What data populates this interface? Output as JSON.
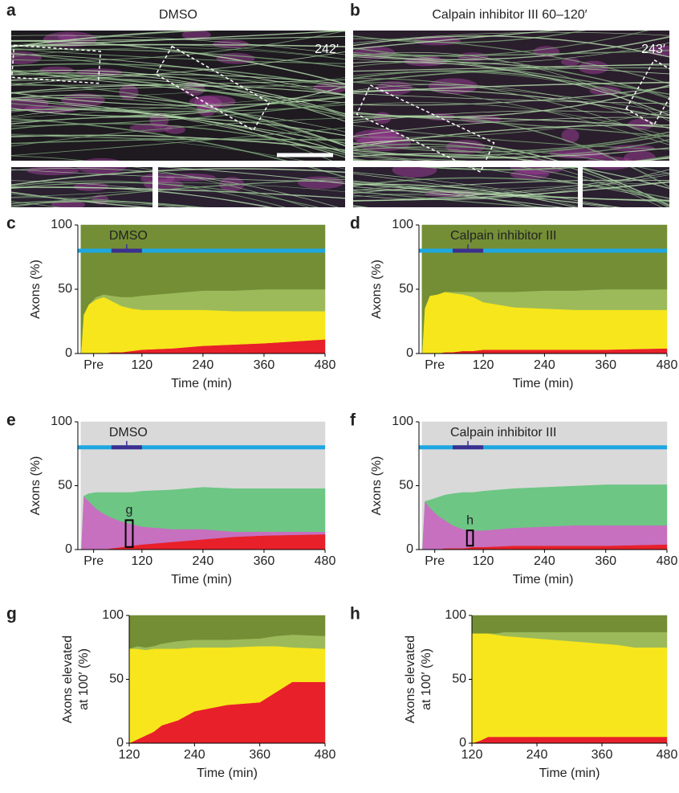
{
  "images": [
    {
      "panel": "a",
      "title": "DMSO",
      "time": "242′"
    },
    {
      "panel": "b",
      "title": "Calpain inhibitor III 60–120′",
      "time": "243′"
    }
  ],
  "chart_data": [
    {
      "type": "stacked-area",
      "panel": "c",
      "annotation": "DMSO",
      "treatment_window": [
        60,
        120
      ],
      "y_label": "Axons (%)",
      "x_label": "Time (min)",
      "x": [
        0,
        5,
        15,
        30,
        45,
        60,
        80,
        100,
        120,
        180,
        240,
        300,
        360,
        480
      ],
      "series": [
        {
          "color": "#e8202a",
          "values": [
            0,
            0,
            0,
            0,
            0,
            1,
            1,
            2,
            3,
            4,
            6,
            7,
            8,
            11
          ]
        },
        {
          "color": "#f6e61b",
          "values": [
            0,
            30,
            38,
            42,
            44,
            40,
            36,
            33,
            31,
            30,
            28,
            26,
            25,
            22
          ]
        },
        {
          "color": "#9cba5a",
          "values": [
            0,
            0,
            0,
            2,
            2,
            4,
            7,
            9,
            11,
            13,
            15,
            16,
            17,
            17
          ]
        },
        {
          "color": "#748e35",
          "values": [
            100,
            70,
            62,
            56,
            54,
            55,
            56,
            56,
            55,
            53,
            51,
            51,
            50,
            50
          ]
        }
      ],
      "xlim": [
        -6,
        480
      ],
      "xticks": [
        {
          "value": 25,
          "label": "Pre"
        },
        120,
        240,
        360,
        480
      ],
      "ylim": [
        0,
        100
      ],
      "yticks": [
        0,
        50,
        100
      ]
    },
    {
      "type": "stacked-area",
      "panel": "d",
      "annotation": "Calpain inhibitor III",
      "treatment_window": [
        60,
        120
      ],
      "y_label": "Axons (%)",
      "x_label": "Time (min)",
      "x": [
        0,
        5,
        15,
        30,
        45,
        60,
        80,
        100,
        120,
        180,
        240,
        300,
        360,
        480
      ],
      "series": [
        {
          "color": "#e8202a",
          "values": [
            0,
            0,
            0,
            0,
            1,
            1,
            2,
            2,
            3,
            3,
            3,
            3,
            3,
            4
          ]
        },
        {
          "color": "#f6e61b",
          "values": [
            0,
            35,
            45,
            46,
            47,
            46,
            44,
            42,
            37,
            33,
            32,
            31,
            31,
            30
          ]
        },
        {
          "color": "#9cba5a",
          "values": [
            0,
            0,
            0,
            0,
            0,
            1,
            2,
            4,
            8,
            12,
            14,
            15,
            16,
            16
          ]
        },
        {
          "color": "#748e35",
          "values": [
            100,
            65,
            55,
            54,
            52,
            52,
            52,
            52,
            52,
            52,
            51,
            51,
            50,
            50
          ]
        }
      ],
      "xlim": [
        -6,
        480
      ],
      "xticks": [
        {
          "value": 25,
          "label": "Pre"
        },
        120,
        240,
        360,
        480
      ],
      "ylim": [
        0,
        100
      ],
      "yticks": [
        0,
        50,
        100
      ]
    },
    {
      "type": "stacked-area",
      "panel": "e",
      "annotation": "DMSO",
      "treatment_window": [
        60,
        120
      ],
      "y_label": "Axons (%)",
      "x_label": "Time (min)",
      "highlight": {
        "label": "g",
        "x": [
          88,
          102
        ],
        "y": [
          2,
          23
        ]
      },
      "x": [
        0,
        5,
        15,
        30,
        45,
        60,
        80,
        100,
        120,
        180,
        240,
        300,
        360,
        480
      ],
      "series": [
        {
          "color": "#e8202a",
          "values": [
            0,
            0,
            0,
            0,
            0,
            1,
            2,
            3,
            4,
            6,
            8,
            10,
            11,
            12
          ]
        },
        {
          "color": "#c670bf",
          "values": [
            0,
            42,
            38,
            32,
            28,
            24,
            20,
            17,
            14,
            10,
            8,
            4,
            3,
            2
          ]
        },
        {
          "color": "#6dc684",
          "values": [
            0,
            0,
            6,
            13,
            17,
            20,
            23,
            25,
            28,
            31,
            33,
            34,
            34,
            34
          ]
        },
        {
          "color": "#d9d9d9",
          "values": [
            100,
            58,
            56,
            55,
            55,
            55,
            55,
            55,
            54,
            53,
            51,
            52,
            52,
            52
          ]
        }
      ],
      "xlim": [
        -6,
        480
      ],
      "xticks": [
        {
          "value": 25,
          "label": "Pre"
        },
        120,
        240,
        360,
        480
      ],
      "ylim": [
        0,
        100
      ],
      "yticks": [
        0,
        50,
        100
      ]
    },
    {
      "type": "stacked-area",
      "panel": "f",
      "annotation": "Calpain inhibitor III",
      "treatment_window": [
        60,
        120
      ],
      "y_label": "Axons (%)",
      "x_label": "Time (min)",
      "highlight": {
        "label": "h",
        "x": [
          88,
          100
        ],
        "y": [
          3,
          15
        ]
      },
      "x": [
        0,
        5,
        15,
        30,
        45,
        60,
        80,
        100,
        120,
        180,
        240,
        300,
        360,
        480
      ],
      "series": [
        {
          "color": "#e8202a",
          "values": [
            0,
            0,
            0,
            0,
            1,
            1,
            1,
            2,
            2,
            3,
            3,
            3,
            3,
            4
          ]
        },
        {
          "color": "#c670bf",
          "values": [
            0,
            38,
            33,
            27,
            22,
            18,
            15,
            13,
            13,
            14,
            15,
            16,
            16,
            15
          ]
        },
        {
          "color": "#6dc684",
          "values": [
            0,
            0,
            6,
            14,
            20,
            25,
            29,
            30,
            31,
            31,
            31,
            31,
            32,
            32
          ]
        },
        {
          "color": "#d9d9d9",
          "values": [
            100,
            62,
            61,
            59,
            57,
            56,
            55,
            55,
            54,
            52,
            51,
            50,
            49,
            49
          ]
        }
      ],
      "xlim": [
        -6,
        480
      ],
      "xticks": [
        {
          "value": 25,
          "label": "Pre"
        },
        120,
        240,
        360,
        480
      ],
      "ylim": [
        0,
        100
      ],
      "yticks": [
        0,
        50,
        100
      ]
    },
    {
      "type": "stacked-area",
      "panel": "g",
      "y_label": [
        "Axons elevated",
        "at 100′ (%)"
      ],
      "x_label": "Time (min)",
      "x": [
        120,
        135,
        150,
        165,
        180,
        210,
        240,
        300,
        360,
        390,
        420,
        480
      ],
      "series": [
        {
          "color": "#e8202a",
          "values": [
            0,
            3,
            6,
            9,
            14,
            18,
            25,
            30,
            32,
            40,
            48,
            48
          ]
        },
        {
          "color": "#f6e61b",
          "values": [
            74,
            71,
            67,
            65,
            60,
            56,
            50,
            45,
            44,
            36,
            27,
            26
          ]
        },
        {
          "color": "#9cba5a",
          "values": [
            0,
            2,
            2,
            2,
            4,
            6,
            6,
            6,
            6,
            8,
            10,
            10
          ]
        },
        {
          "color": "#748e35",
          "values": [
            26,
            24,
            25,
            24,
            22,
            20,
            19,
            19,
            18,
            16,
            15,
            16
          ]
        }
      ],
      "xlim": [
        120,
        480
      ],
      "xticks": [
        120,
        240,
        360,
        480
      ],
      "ylim": [
        0,
        100
      ],
      "yticks": [
        0,
        50,
        100
      ]
    },
    {
      "type": "stacked-area",
      "panel": "h",
      "y_label": [
        "Axons elevated",
        "at 100′ (%)"
      ],
      "x_label": "Time (min)",
      "x": [
        120,
        135,
        150,
        165,
        180,
        210,
        240,
        300,
        360,
        390,
        420,
        480
      ],
      "series": [
        {
          "color": "#e8202a",
          "values": [
            0,
            2,
            5,
            5,
            5,
            5,
            5,
            5,
            5,
            5,
            5,
            5
          ]
        },
        {
          "color": "#f6e61b",
          "values": [
            86,
            84,
            81,
            80,
            79,
            78,
            77,
            75,
            73,
            72,
            70,
            70
          ]
        },
        {
          "color": "#9cba5a",
          "values": [
            0,
            0,
            0,
            1,
            3,
            4,
            5,
            7,
            9,
            10,
            12,
            12
          ]
        },
        {
          "color": "#748e35",
          "values": [
            14,
            14,
            14,
            14,
            13,
            13,
            13,
            13,
            13,
            13,
            13,
            13
          ]
        }
      ],
      "xlim": [
        120,
        480
      ],
      "xticks": [
        120,
        240,
        360,
        480
      ],
      "ylim": [
        0,
        100
      ],
      "yticks": [
        0,
        50,
        100
      ]
    }
  ]
}
